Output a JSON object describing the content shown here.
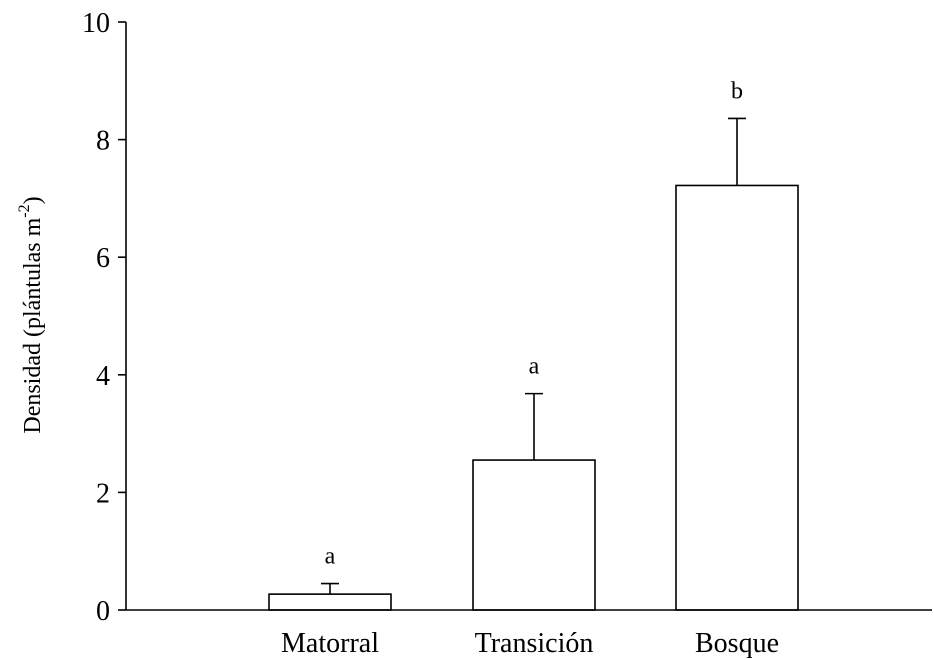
{
  "chart_data": {
    "type": "bar",
    "categories": [
      "Matorral",
      "Transición",
      "Bosque"
    ],
    "values": [
      0.27,
      2.55,
      7.22
    ],
    "error_upper": [
      0.45,
      3.68,
      8.36
    ],
    "significance_labels": [
      "a",
      "a",
      "b"
    ],
    "ylabel": {
      "main": "Densidad (plántulas m",
      "sup": "-2",
      "close": ")"
    },
    "xlabel": "",
    "ylim": [
      0,
      10
    ],
    "yticks": [
      "0",
      "2",
      "4",
      "6",
      "8",
      "10"
    ],
    "grid": false,
    "bar_fill": "#ffffff",
    "bar_stroke": "#000000"
  }
}
